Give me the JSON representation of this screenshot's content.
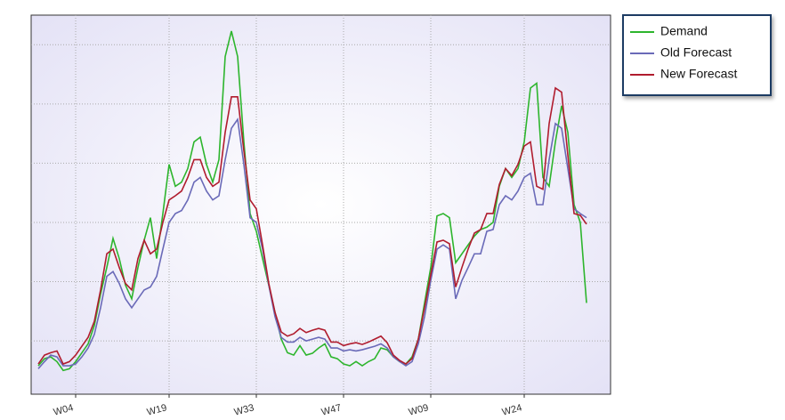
{
  "chart_data": {
    "type": "line",
    "categories": [
      null,
      null,
      null,
      null,
      null,
      null,
      "W04",
      null,
      null,
      null,
      null,
      null,
      null,
      null,
      null,
      null,
      null,
      null,
      null,
      null,
      null,
      "W19",
      null,
      null,
      null,
      null,
      null,
      null,
      null,
      null,
      null,
      null,
      null,
      null,
      null,
      "W33",
      null,
      null,
      null,
      null,
      null,
      null,
      null,
      null,
      null,
      null,
      null,
      null,
      null,
      "W47",
      null,
      null,
      null,
      null,
      null,
      null,
      null,
      null,
      null,
      null,
      null,
      null,
      null,
      "W09",
      null,
      null,
      null,
      null,
      null,
      null,
      null,
      null,
      null,
      null,
      null,
      null,
      null,
      null,
      "W24",
      null,
      null,
      null,
      null,
      null,
      null,
      null,
      null,
      null,
      null
    ],
    "series": [
      {
        "name": "Demand",
        "color": "#2db52d",
        "values": [
          0.58,
          0.7,
          0.73,
          0.65,
          0.5,
          0.53,
          0.65,
          0.8,
          0.95,
          1.26,
          1.79,
          2.24,
          2.73,
          2.39,
          1.94,
          1.71,
          2.24,
          2.7,
          3.08,
          2.39,
          3.15,
          3.98,
          3.61,
          3.68,
          3.91,
          4.36,
          4.44,
          3.98,
          3.68,
          4.06,
          5.8,
          6.23,
          5.8,
          4.36,
          3.15,
          2.85,
          2.39,
          1.94,
          1.48,
          1.03,
          0.8,
          0.76,
          0.92,
          0.76,
          0.79,
          0.88,
          0.95,
          0.73,
          0.7,
          0.61,
          0.58,
          0.65,
          0.58,
          0.65,
          0.7,
          0.88,
          0.85,
          0.73,
          0.65,
          0.61,
          0.73,
          1.03,
          1.64,
          2.24,
          3.11,
          3.15,
          3.08,
          2.32,
          2.47,
          2.62,
          2.77,
          2.88,
          2.92,
          3.0,
          3.61,
          3.91,
          3.76,
          3.91,
          4.36,
          5.27,
          5.35,
          3.76,
          3.61,
          4.36,
          4.97,
          4.52,
          3.3,
          3.0,
          1.64
        ]
      },
      {
        "name": "Old Forecast",
        "color": "#6a6ab8",
        "values": [
          0.53,
          0.65,
          0.76,
          0.73,
          0.58,
          0.58,
          0.61,
          0.73,
          0.88,
          1.11,
          1.56,
          2.09,
          2.17,
          1.97,
          1.71,
          1.56,
          1.71,
          1.86,
          1.91,
          2.09,
          2.55,
          3.0,
          3.15,
          3.2,
          3.38,
          3.68,
          3.76,
          3.53,
          3.38,
          3.45,
          4.06,
          4.59,
          4.74,
          3.98,
          3.08,
          3.0,
          2.55,
          1.94,
          1.41,
          1.06,
          0.98,
          0.98,
          1.06,
          1.0,
          1.03,
          1.06,
          1.03,
          0.88,
          0.88,
          0.83,
          0.85,
          0.83,
          0.85,
          0.88,
          0.91,
          0.95,
          0.88,
          0.73,
          0.65,
          0.58,
          0.65,
          0.95,
          1.41,
          2.02,
          2.55,
          2.62,
          2.55,
          1.71,
          2.02,
          2.24,
          2.47,
          2.47,
          2.85,
          2.88,
          3.3,
          3.45,
          3.38,
          3.53,
          3.76,
          3.83,
          3.3,
          3.3,
          4.06,
          4.67,
          4.59,
          3.91,
          3.23,
          3.15,
          3.08
        ]
      },
      {
        "name": "New Forecast",
        "color": "#b01c2e",
        "values": [
          0.61,
          0.76,
          0.8,
          0.83,
          0.61,
          0.65,
          0.76,
          0.91,
          1.06,
          1.33,
          1.86,
          2.47,
          2.55,
          2.24,
          1.97,
          1.86,
          2.39,
          2.7,
          2.47,
          2.55,
          3.0,
          3.38,
          3.45,
          3.53,
          3.76,
          4.06,
          4.06,
          3.76,
          3.61,
          3.68,
          4.52,
          5.12,
          5.12,
          4.21,
          3.38,
          3.23,
          2.62,
          1.97,
          1.48,
          1.15,
          1.08,
          1.12,
          1.21,
          1.14,
          1.18,
          1.21,
          1.18,
          0.98,
          0.98,
          0.92,
          0.95,
          0.97,
          0.94,
          0.98,
          1.03,
          1.08,
          0.97,
          0.76,
          0.67,
          0.61,
          0.7,
          1.03,
          1.56,
          2.12,
          2.67,
          2.7,
          2.64,
          1.91,
          2.24,
          2.55,
          2.82,
          2.88,
          3.15,
          3.15,
          3.64,
          3.91,
          3.79,
          3.98,
          4.29,
          4.36,
          3.61,
          3.56,
          4.67,
          5.27,
          5.2,
          4.14,
          3.15,
          3.12,
          2.97
        ]
      }
    ],
    "ylim": [
      0.1,
      6.5
    ],
    "yticks": [
      1,
      2,
      3,
      4,
      5,
      6
    ],
    "grid": true
  }
}
